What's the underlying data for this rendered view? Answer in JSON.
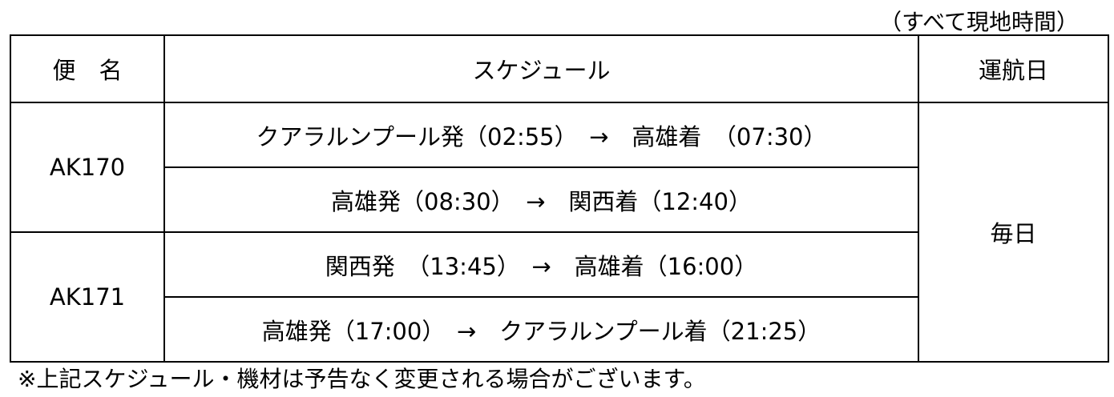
{
  "caption": "（すべて現地時間）",
  "headers": {
    "flight": "便　名",
    "schedule": "スケジュール",
    "days": "運航日"
  },
  "flights": [
    {
      "number": "AK170",
      "legs": [
        "クアラルンプール発（02:55）　→　高雄着　（07:30）",
        "高雄発（08:30）　→　関西着（12:40）"
      ]
    },
    {
      "number": "AK171",
      "legs": [
        "関西発　（13:45）　→　高雄着（16:00）",
        "高雄発（17:00）　→　クアラルンプール着（21:25）"
      ]
    }
  ],
  "days": "毎日",
  "footnote": "※上記スケジュール・機材は予告なく変更される場合がございます。"
}
